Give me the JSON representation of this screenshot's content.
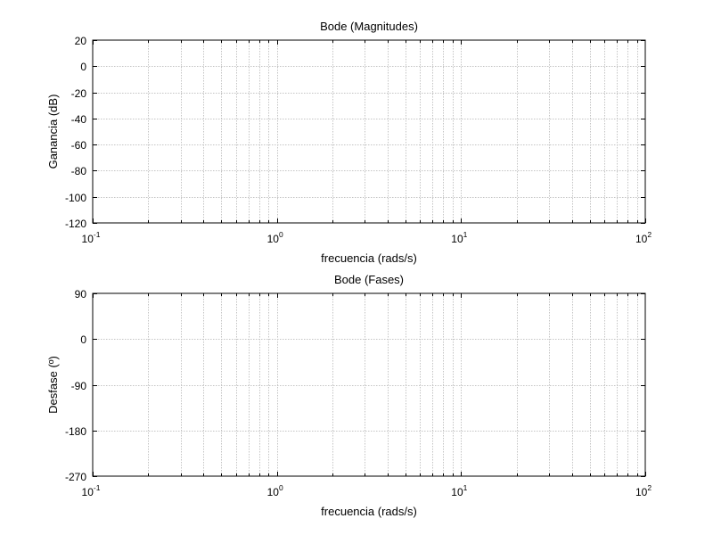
{
  "chart_data": [
    {
      "type": "line",
      "title": "Bode (Magnitudes)",
      "xlabel": "frecuencia (rads/s)",
      "ylabel": "Ganancia (dB)",
      "xscale": "log",
      "xlim": [
        0.1,
        100
      ],
      "ylim": [
        -120,
        20
      ],
      "xticks": [
        {
          "value": 0.1,
          "base": "10",
          "exp": "-1"
        },
        {
          "value": 1,
          "base": "10",
          "exp": "0"
        },
        {
          "value": 10,
          "base": "10",
          "exp": "1"
        },
        {
          "value": 100,
          "base": "10",
          "exp": "2"
        }
      ],
      "yticks": [
        20,
        0,
        -20,
        -40,
        -60,
        -80,
        -100,
        -120
      ],
      "grid": true,
      "series": []
    },
    {
      "type": "line",
      "title": "Bode (Fases)",
      "xlabel": "frecuencia (rads/s)",
      "ylabel": "Desfase (º)",
      "xscale": "log",
      "xlim": [
        0.1,
        100
      ],
      "ylim": [
        -270,
        90
      ],
      "xticks": [
        {
          "value": 0.1,
          "base": "10",
          "exp": "-1"
        },
        {
          "value": 1,
          "base": "10",
          "exp": "0"
        },
        {
          "value": 10,
          "base": "10",
          "exp": "1"
        },
        {
          "value": 100,
          "base": "10",
          "exp": "2"
        }
      ],
      "yticks": [
        90,
        0,
        -90,
        -180,
        -270
      ],
      "grid": true,
      "series": []
    }
  ]
}
